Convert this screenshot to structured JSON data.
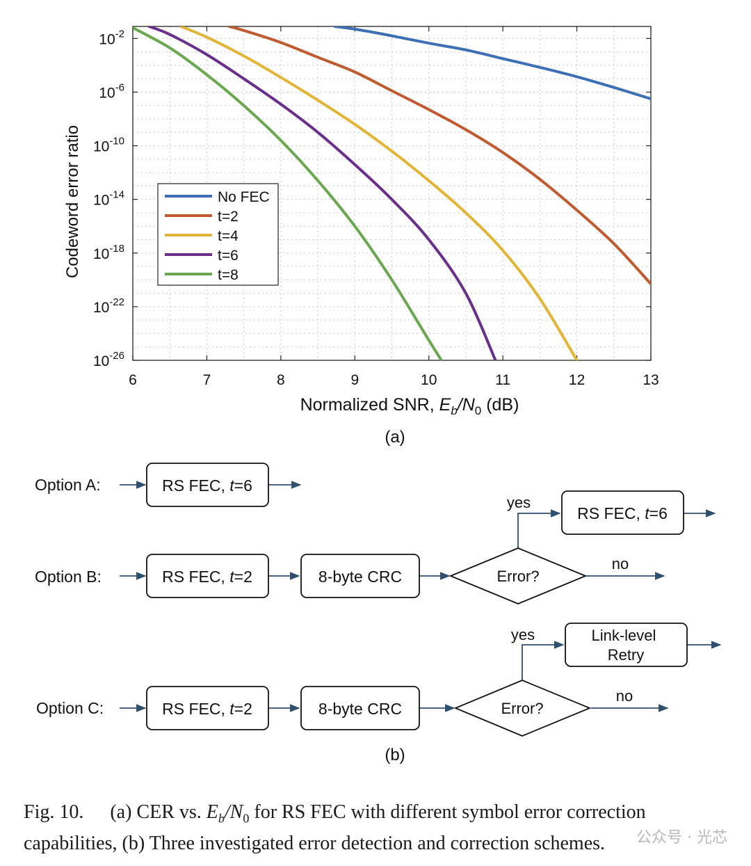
{
  "chart_data": {
    "type": "line",
    "ylabel": "Codeword error ratio",
    "xlabel_prefix": "Normalized SNR, ",
    "xlabel_var": "Eb/N0",
    "xlabel_suffix": " (dB)",
    "panel_label": "(a)",
    "xlim": [
      6,
      13
    ],
    "ylim_log10": [
      -26,
      -1.1
    ],
    "xticks": [
      "6",
      "7",
      "8",
      "9",
      "10",
      "11",
      "12",
      "13"
    ],
    "yticks": [
      {
        "exp": -2,
        "base": "10",
        "sup": "-2"
      },
      {
        "exp": -6,
        "base": "10",
        "sup": "-6"
      },
      {
        "exp": -10,
        "base": "10",
        "sup": "-10"
      },
      {
        "exp": -14,
        "base": "10",
        "sup": "-14"
      },
      {
        "exp": -18,
        "base": "10",
        "sup": "-18"
      },
      {
        "exp": -22,
        "base": "10",
        "sup": "-22"
      },
      {
        "exp": -26,
        "base": "10",
        "sup": "-26"
      }
    ],
    "grid": true,
    "legend_position": "center-left",
    "series": [
      {
        "name": "No FEC",
        "color": "#3d6fb6",
        "x": [
          8.73,
          9.0,
          9.5,
          10.0,
          10.5,
          11.0,
          11.5,
          12.0,
          12.5,
          13.0
        ],
        "log10_y": [
          -1.1,
          -1.3,
          -1.8,
          -2.35,
          -2.85,
          -3.5,
          -4.15,
          -4.85,
          -5.65,
          -6.5
        ]
      },
      {
        "name": "t=2",
        "color": "#c25a30",
        "x": [
          7.3,
          7.5,
          8.0,
          8.5,
          9.0,
          9.5,
          10.0,
          10.5,
          11.0,
          11.5,
          12.0,
          12.5,
          13.0
        ],
        "log10_y": [
          -1.1,
          -1.4,
          -2.3,
          -3.4,
          -4.5,
          -5.9,
          -7.3,
          -8.8,
          -10.5,
          -12.5,
          -14.8,
          -17.3,
          -20.3
        ]
      },
      {
        "name": "t=4",
        "color": "#e3b436",
        "x": [
          6.65,
          7.0,
          7.5,
          8.0,
          8.5,
          9.0,
          9.5,
          10.0,
          10.5,
          11.0,
          11.5,
          12.0
        ],
        "log10_y": [
          -1.1,
          -1.9,
          -3.3,
          -4.9,
          -6.6,
          -8.4,
          -10.4,
          -12.6,
          -15.0,
          -17.8,
          -21.4,
          -26.0
        ]
      },
      {
        "name": "t=6",
        "color": "#6a2f8c",
        "x": [
          6.22,
          6.5,
          7.0,
          7.5,
          8.0,
          8.5,
          9.0,
          9.5,
          10.0,
          10.5,
          10.9
        ],
        "log10_y": [
          -1.1,
          -1.7,
          -3.2,
          -5.0,
          -6.9,
          -9.0,
          -11.4,
          -14.0,
          -17.0,
          -21.0,
          -26.0
        ]
      },
      {
        "name": "t=8",
        "color": "#6aa84f",
        "x": [
          6.0,
          6.5,
          7.0,
          7.5,
          8.0,
          8.5,
          9.0,
          9.5,
          10.0,
          10.17
        ],
        "log10_y": [
          -1.2,
          -2.7,
          -4.7,
          -7.0,
          -9.6,
          -12.6,
          -16.0,
          -20.0,
          -24.5,
          -26.0
        ]
      }
    ]
  },
  "diagram": {
    "panel_label": "(b)",
    "option_a": {
      "label": "Option A:",
      "box1": "RS FEC, ",
      "box1_var": "t",
      "box1_val": "=6"
    },
    "option_b": {
      "label": "Option B:",
      "box1": "RS FEC, ",
      "box1_var": "t",
      "box1_val": "=2",
      "box2": "8-byte CRC",
      "decision": "Error?",
      "yes": "yes",
      "no": "no",
      "yes_box": "RS FEC, ",
      "yes_box_var": "t",
      "yes_box_val": "=6"
    },
    "option_c": {
      "label": "Option C:",
      "box1": "RS FEC, ",
      "box1_var": "t",
      "box1_val": "=2",
      "box2": "8-byte CRC",
      "decision": "Error?",
      "yes": "yes",
      "no": "no",
      "yes_box_line1": "Link-level",
      "yes_box_line2": "Retry"
    }
  },
  "caption": {
    "fig": "Fig. 10.",
    "part_a_prefix": "(a) CER vs. ",
    "part_a_var": "Eb/N0",
    "part_a_suffix": " for RS FEC with different symbol error correction capabilities, (b) Three investigated error detection and correction schemes."
  },
  "watermark": "公众号 · 光芯"
}
